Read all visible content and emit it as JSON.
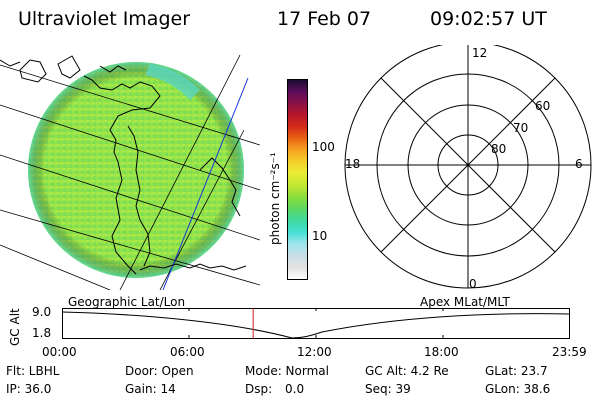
{
  "header": {
    "title": "Ultraviolet Imager",
    "date": "17 Feb 07",
    "time": "09:02:57 UT"
  },
  "colorbar": {
    "unit_label": "photon cm⁻²s⁻¹",
    "ticks": [
      "100",
      "10"
    ],
    "colors": [
      "#ffffff",
      "#e2e2e2",
      "#c8dde8",
      "#9ee6ec",
      "#45dfd3",
      "#3fd99f",
      "#5cd760",
      "#8bdd3c",
      "#c4e833",
      "#e8ed35",
      "#f4d12c",
      "#f5a322",
      "#ea6414",
      "#d42a1a",
      "#b8172a",
      "#8a1247",
      "#5a0d5c",
      "#1b0a2e"
    ]
  },
  "polar_plot": {
    "lat_labels": [
      "60",
      "70",
      "80"
    ],
    "mlt_labels": {
      "top": "12",
      "left": "18",
      "right": "6",
      "bottom": "0"
    }
  },
  "timeline": {
    "ylabel": "GC Alt",
    "yticks": [
      "9.0",
      "1.8"
    ],
    "left_caption": "Geographic Lat/Lon",
    "right_caption": "Apex MLat/MLT",
    "xticks": [
      "00:00",
      "06:00",
      "12:00",
      "18:00",
      "23:59"
    ],
    "current_time_hours": 9.05
  },
  "status": {
    "row1": {
      "filter": "Flt: LBHL",
      "door": "Door: Open",
      "mode": "Mode: Normal",
      "gc_alt": "GC Alt: 4.2 Re",
      "glat": "GLat: 23.7"
    },
    "row2": {
      "ip": "IP: 36.0",
      "gain": "Gain: 14",
      "dsp_label": "Dsp:",
      "dsp_value": "0.0",
      "seq": "Seq: 39",
      "glon": "GLon: 38.6"
    }
  }
}
